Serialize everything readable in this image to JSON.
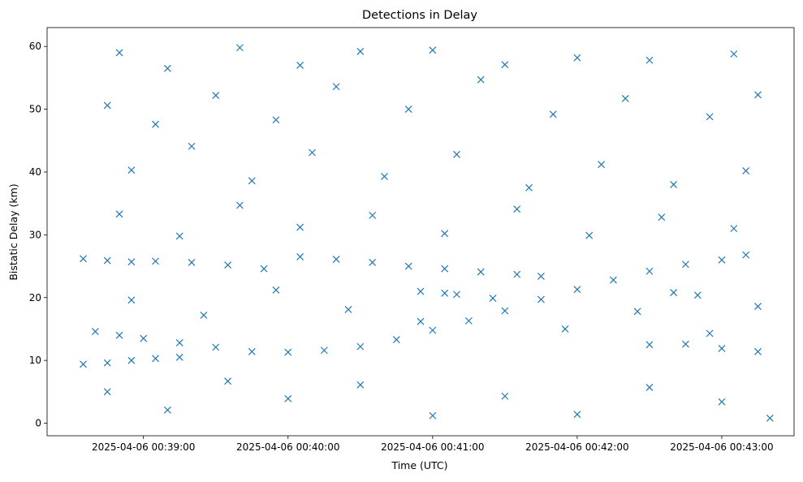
{
  "chart_data": {
    "type": "scatter",
    "title": "Detections in Delay",
    "xlabel": "Time (UTC)",
    "ylabel": "Bistatic Delay (km)",
    "marker": "x",
    "color": "#1f77b4",
    "xlim": [
      "2025-04-06 00:38:20",
      "2025-04-06 00:43:30"
    ],
    "ylim": [
      -2,
      63
    ],
    "x_ticks": [
      "2025-04-06 00:39:00",
      "2025-04-06 00:40:00",
      "2025-04-06 00:41:00",
      "2025-04-06 00:42:00",
      "2025-04-06 00:43:00"
    ],
    "y_ticks": [
      0,
      10,
      20,
      30,
      40,
      50,
      60
    ],
    "series": [
      {
        "points": [
          [
            "2025-04-06 00:38:35",
            26.2
          ],
          [
            "2025-04-06 00:38:45",
            25.9
          ],
          [
            "2025-04-06 00:38:55",
            25.7
          ],
          [
            "2025-04-06 00:39:05",
            25.8
          ],
          [
            "2025-04-06 00:39:20",
            25.6
          ],
          [
            "2025-04-06 00:39:35",
            25.2
          ],
          [
            "2025-04-06 00:39:50",
            24.6
          ],
          [
            "2025-04-06 00:40:05",
            26.5
          ],
          [
            "2025-04-06 00:40:20",
            26.1
          ],
          [
            "2025-04-06 00:40:35",
            25.6
          ],
          [
            "2025-04-06 00:40:50",
            25.0
          ],
          [
            "2025-04-06 00:41:05",
            24.6
          ],
          [
            "2025-04-06 00:41:20",
            24.1
          ],
          [
            "2025-04-06 00:41:35",
            23.7
          ],
          [
            "2025-04-06 00:41:45",
            23.4
          ],
          [
            "2025-04-06 00:40:55",
            21.0
          ],
          [
            "2025-04-06 00:41:05",
            20.7
          ],
          [
            "2025-04-06 00:41:10",
            20.5
          ],
          [
            "2025-04-06 00:38:35",
            9.4
          ],
          [
            "2025-04-06 00:38:45",
            9.6
          ],
          [
            "2025-04-06 00:38:55",
            10.0
          ],
          [
            "2025-04-06 00:39:05",
            10.3
          ],
          [
            "2025-04-06 00:39:15",
            10.5
          ],
          [
            "2025-04-06 00:38:40",
            14.6
          ],
          [
            "2025-04-06 00:38:50",
            14.0
          ],
          [
            "2025-04-06 00:39:00",
            13.5
          ],
          [
            "2025-04-06 00:39:15",
            12.8
          ],
          [
            "2025-04-06 00:39:30",
            12.1
          ],
          [
            "2025-04-06 00:39:45",
            11.4
          ],
          [
            "2025-04-06 00:40:00",
            11.3
          ],
          [
            "2025-04-06 00:40:15",
            11.6
          ],
          [
            "2025-04-06 00:40:30",
            12.2
          ],
          [
            "2025-04-06 00:40:45",
            13.3
          ],
          [
            "2025-04-06 00:41:00",
            14.8
          ],
          [
            "2025-04-06 00:41:15",
            16.3
          ],
          [
            "2025-04-06 00:41:30",
            17.9
          ],
          [
            "2025-04-06 00:41:45",
            19.7
          ],
          [
            "2025-04-06 00:42:00",
            21.3
          ],
          [
            "2025-04-06 00:42:15",
            22.8
          ],
          [
            "2025-04-06 00:42:30",
            24.2
          ],
          [
            "2025-04-06 00:42:45",
            25.3
          ],
          [
            "2025-04-06 00:43:00",
            26.0
          ],
          [
            "2025-04-06 00:43:10",
            26.8
          ],
          [
            "2025-04-06 00:42:40",
            20.8
          ],
          [
            "2025-04-06 00:42:50",
            20.4
          ],
          [
            "2025-04-06 00:42:30",
            12.5
          ],
          [
            "2025-04-06 00:42:45",
            12.6
          ],
          [
            "2025-04-06 00:43:00",
            11.9
          ],
          [
            "2025-04-06 00:43:15",
            11.4
          ],
          [
            "2025-04-06 00:38:50",
            59.0
          ],
          [
            "2025-04-06 00:39:10",
            56.5
          ],
          [
            "2025-04-06 00:39:40",
            59.8
          ],
          [
            "2025-04-06 00:40:05",
            57.0
          ],
          [
            "2025-04-06 00:40:30",
            59.2
          ],
          [
            "2025-04-06 00:41:00",
            59.4
          ],
          [
            "2025-04-06 00:41:30",
            57.1
          ],
          [
            "2025-04-06 00:42:00",
            58.2
          ],
          [
            "2025-04-06 00:42:30",
            57.8
          ],
          [
            "2025-04-06 00:43:05",
            58.8
          ],
          [
            "2025-04-06 00:38:45",
            50.6
          ],
          [
            "2025-04-06 00:39:05",
            47.6
          ],
          [
            "2025-04-06 00:39:30",
            52.2
          ],
          [
            "2025-04-06 00:39:55",
            48.3
          ],
          [
            "2025-04-06 00:40:20",
            53.6
          ],
          [
            "2025-04-06 00:40:50",
            50.0
          ],
          [
            "2025-04-06 00:41:20",
            54.7
          ],
          [
            "2025-04-06 00:41:50",
            49.2
          ],
          [
            "2025-04-06 00:42:20",
            51.7
          ],
          [
            "2025-04-06 00:42:55",
            48.8
          ],
          [
            "2025-04-06 00:43:15",
            52.3
          ],
          [
            "2025-04-06 00:38:55",
            40.3
          ],
          [
            "2025-04-06 00:39:20",
            44.1
          ],
          [
            "2025-04-06 00:39:45",
            38.6
          ],
          [
            "2025-04-06 00:40:10",
            43.1
          ],
          [
            "2025-04-06 00:40:40",
            39.3
          ],
          [
            "2025-04-06 00:41:10",
            42.8
          ],
          [
            "2025-04-06 00:41:40",
            37.5
          ],
          [
            "2025-04-06 00:42:10",
            41.2
          ],
          [
            "2025-04-06 00:42:40",
            38.0
          ],
          [
            "2025-04-06 00:43:10",
            40.2
          ],
          [
            "2025-04-06 00:38:50",
            33.3
          ],
          [
            "2025-04-06 00:39:15",
            29.8
          ],
          [
            "2025-04-06 00:39:40",
            34.7
          ],
          [
            "2025-04-06 00:40:05",
            31.2
          ],
          [
            "2025-04-06 00:40:35",
            33.1
          ],
          [
            "2025-04-06 00:41:05",
            30.2
          ],
          [
            "2025-04-06 00:41:35",
            34.1
          ],
          [
            "2025-04-06 00:42:05",
            29.9
          ],
          [
            "2025-04-06 00:42:35",
            32.8
          ],
          [
            "2025-04-06 00:43:05",
            31.0
          ],
          [
            "2025-04-06 00:38:55",
            19.6
          ],
          [
            "2025-04-06 00:39:25",
            17.2
          ],
          [
            "2025-04-06 00:39:55",
            21.2
          ],
          [
            "2025-04-06 00:40:25",
            18.1
          ],
          [
            "2025-04-06 00:40:55",
            16.2
          ],
          [
            "2025-04-06 00:41:25",
            19.9
          ],
          [
            "2025-04-06 00:41:55",
            15.0
          ],
          [
            "2025-04-06 00:42:25",
            17.8
          ],
          [
            "2025-04-06 00:42:55",
            14.3
          ],
          [
            "2025-04-06 00:43:15",
            18.6
          ],
          [
            "2025-04-06 00:38:45",
            5.0
          ],
          [
            "2025-04-06 00:39:10",
            2.1
          ],
          [
            "2025-04-06 00:39:35",
            6.7
          ],
          [
            "2025-04-06 00:40:00",
            3.9
          ],
          [
            "2025-04-06 00:40:30",
            6.1
          ],
          [
            "2025-04-06 00:41:00",
            1.2
          ],
          [
            "2025-04-06 00:41:30",
            4.3
          ],
          [
            "2025-04-06 00:42:00",
            1.4
          ],
          [
            "2025-04-06 00:42:30",
            5.7
          ],
          [
            "2025-04-06 00:43:00",
            3.4
          ],
          [
            "2025-04-06 00:43:20",
            0.8
          ]
        ]
      }
    ]
  }
}
